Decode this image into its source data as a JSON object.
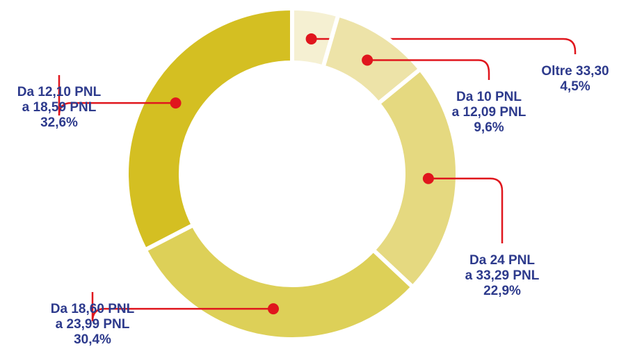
{
  "chart_data": {
    "type": "pie",
    "donut": true,
    "categories": [
      [
        "Oltre 33,30"
      ],
      [
        "Da 10 PNL",
        "a 12,09 PNL"
      ],
      [
        "Da 24 PNL",
        "a 33,29 PNL"
      ],
      [
        "Da 18,60 PNL",
        "a 23,99 PNL"
      ],
      [
        "Da 12,10 PNL",
        "a 18,59 PNL"
      ]
    ],
    "values": [
      4.5,
      9.6,
      22.9,
      30.4,
      32.6
    ],
    "value_labels": [
      "4,5%",
      "9,6%",
      "22,9%",
      "30,4%",
      "32,6%"
    ],
    "colors": [
      "#f5f0d2",
      "#ede3a8",
      "#e5d980",
      "#ddd058",
      "#d4bf22"
    ],
    "leader_color": "#e0161d"
  }
}
